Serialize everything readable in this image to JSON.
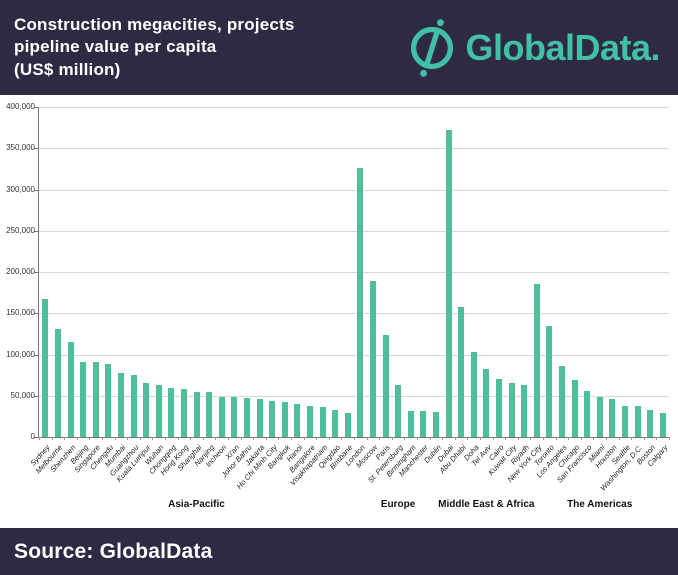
{
  "header": {
    "title_lines": [
      "Construction megacities, projects",
      "pipeline value per capita",
      "(US$ million)"
    ],
    "logo_text": "GlobalData."
  },
  "footer": {
    "source_label": "Source: GlobalData"
  },
  "colors": {
    "header_bg": "#2e2a44",
    "bar": "#4fbe9d",
    "logo": "#41c0a5",
    "grid": "#d8d8d8"
  },
  "chart_data": {
    "type": "bar",
    "title": "Construction megacities, projects pipeline value per capita (US$ million)",
    "xlabel": "",
    "ylabel": "",
    "ylim": [
      0,
      400000
    ],
    "ytick_step": 50000,
    "ytick_labels": [
      "0",
      "50,000",
      "100,000",
      "150,000",
      "200,000",
      "250,000",
      "300,000",
      "350,000",
      "400,000"
    ],
    "grid": true,
    "legend": false,
    "groups": [
      {
        "label": "Asia-Pacific",
        "cities": [
          {
            "name": "Sydney",
            "value": 167000
          },
          {
            "name": "Melbourne",
            "value": 131000
          },
          {
            "name": "Shenzhen",
            "value": 115000
          },
          {
            "name": "Beijing",
            "value": 91000
          },
          {
            "name": "Singapore",
            "value": 91000
          },
          {
            "name": "Chengdu",
            "value": 89000
          },
          {
            "name": "Mumbai",
            "value": 78000
          },
          {
            "name": "Guangzhou",
            "value": 75000
          },
          {
            "name": "Kuala Lumpur",
            "value": 66000
          },
          {
            "name": "Wuhan",
            "value": 63000
          },
          {
            "name": "Chongqing",
            "value": 59000
          },
          {
            "name": "Hong Kong",
            "value": 58000
          },
          {
            "name": "Shanghai",
            "value": 55000
          },
          {
            "name": "Nanjing",
            "value": 54000
          },
          {
            "name": "Incheon",
            "value": 49000
          },
          {
            "name": "Xi'an",
            "value": 48000
          },
          {
            "name": "Johor Bahru",
            "value": 47000
          },
          {
            "name": "Jakarta",
            "value": 46000
          },
          {
            "name": "Ho Chi Minh City",
            "value": 44000
          },
          {
            "name": "Bangkok",
            "value": 42000
          },
          {
            "name": "Hanoi",
            "value": 40000
          },
          {
            "name": "Bangalore",
            "value": 38000
          },
          {
            "name": "Visakhapatnam",
            "value": 36000
          },
          {
            "name": "Qingdao",
            "value": 33000
          },
          {
            "name": "Brisbane",
            "value": 29000
          }
        ]
      },
      {
        "label": "Europe",
        "cities": [
          {
            "name": "London",
            "value": 326000
          },
          {
            "name": "Moscow",
            "value": 189000
          },
          {
            "name": "Paris",
            "value": 124000
          },
          {
            "name": "St. Petersburg",
            "value": 63000
          },
          {
            "name": "Birmingham",
            "value": 32000
          },
          {
            "name": "Manchester",
            "value": 31000
          },
          {
            "name": "Dublin",
            "value": 30000
          }
        ]
      },
      {
        "label": "Middle East & Africa",
        "cities": [
          {
            "name": "Dubai",
            "value": 372000
          },
          {
            "name": "Abu Dhabi",
            "value": 158000
          },
          {
            "name": "Doha",
            "value": 103000
          },
          {
            "name": "Tel Aviv",
            "value": 83000
          },
          {
            "name": "Cairo",
            "value": 70000
          },
          {
            "name": "Kuwait City",
            "value": 65000
          },
          {
            "name": "Riyadh",
            "value": 63000
          }
        ]
      },
      {
        "label": "The Americas",
        "cities": [
          {
            "name": "New York City",
            "value": 186000
          },
          {
            "name": "Toronto",
            "value": 134000
          },
          {
            "name": "Los Angeles",
            "value": 86000
          },
          {
            "name": "Chicago",
            "value": 69000
          },
          {
            "name": "San Francisco",
            "value": 56000
          },
          {
            "name": "Miami",
            "value": 49000
          },
          {
            "name": "Houston",
            "value": 46000
          },
          {
            "name": "Seattle",
            "value": 38000
          },
          {
            "name": "Washington, D.C.",
            "value": 37000
          },
          {
            "name": "Boston",
            "value": 33000
          },
          {
            "name": "Calgary",
            "value": 29000
          }
        ]
      }
    ]
  }
}
